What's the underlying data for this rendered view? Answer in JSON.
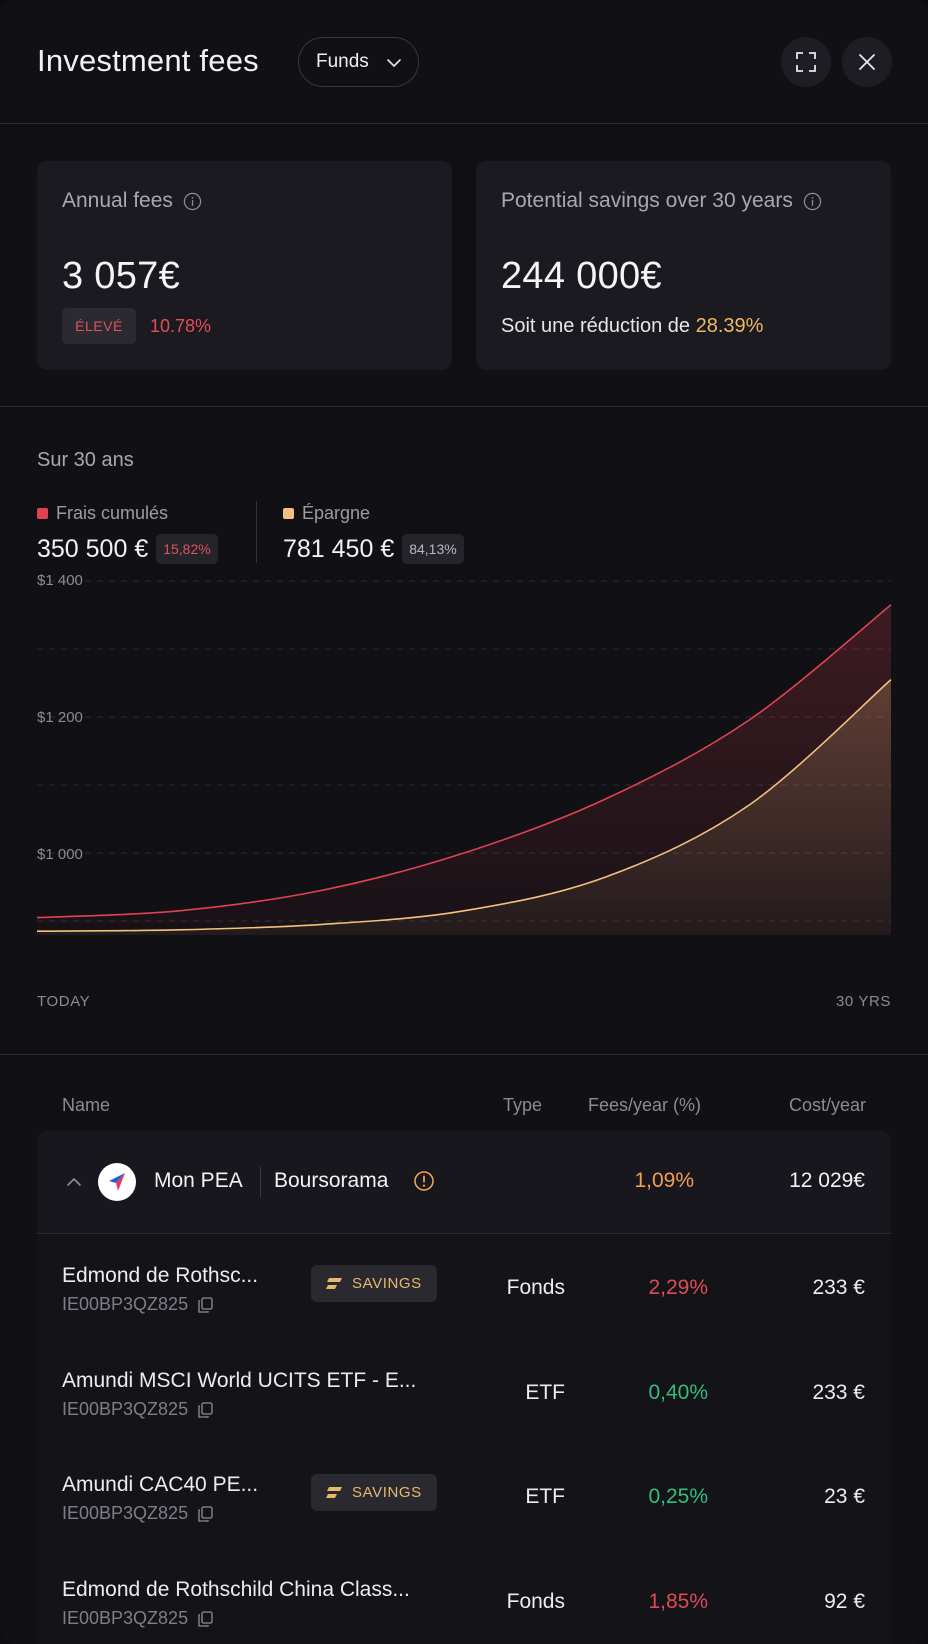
{
  "header": {
    "title": "Investment fees",
    "dropdown_value": "Funds",
    "icons": [
      "expand-icon",
      "close-icon"
    ]
  },
  "cards": {
    "annual": {
      "label": "Annual fees",
      "value": "3 057€",
      "badge": "ÉLEVÉ",
      "percent": "10.78%"
    },
    "savings": {
      "label": "Potential savings over 30 years",
      "value": "244 000€",
      "sub_prefix": "Soit une réduction de ",
      "sub_percent": "28.39%"
    }
  },
  "chart": {
    "heading": "Sur 30 ans",
    "legend": [
      {
        "label": "Frais cumulés",
        "value": "350 500 €",
        "badge": "15,82%",
        "color": "#e0434f"
      },
      {
        "label": "Épargne",
        "value": "781 450 €",
        "badge": "84,13%",
        "color": "#f3c07e"
      }
    ],
    "y_ticks": [
      "$1 400",
      "$1 200",
      "$1 000"
    ],
    "x_start": "TODAY",
    "x_end": "30 YRS"
  },
  "chart_data": {
    "type": "area",
    "x": [
      0,
      5,
      10,
      15,
      20,
      25,
      30
    ],
    "series": [
      {
        "name": "Frais cumulés",
        "values": [
          905,
          915,
          945,
          1000,
          1080,
          1195,
          1365
        ]
      },
      {
        "name": "Épargne",
        "values": [
          885,
          887,
          895,
          915,
          965,
          1070,
          1255
        ]
      }
    ],
    "ylim": [
      840,
      1420
    ],
    "yticks": [
      1000,
      1200,
      1400
    ],
    "grid": true,
    "legend": "top-left"
  },
  "table": {
    "headers": {
      "name": "Name",
      "type": "Type",
      "fees": "Fees/year (%)",
      "cost": "Cost/year"
    },
    "group": {
      "name": "Mon PEA",
      "broker": "Boursorama",
      "fee": "1,09%",
      "cost": "12 029€"
    },
    "savings_label": "SAVINGS",
    "rows": [
      {
        "name": "Edmond de Rothsc...",
        "isin": "IE00BP3QZ825",
        "type": "Fonds",
        "fee": "2,29%",
        "cost": "233 €"
      },
      {
        "name": "Amundi MSCI World UCITS ETF - E...",
        "isin": "IE00BP3QZ825",
        "type": "ETF",
        "fee": "0,40%",
        "cost": "233 €"
      },
      {
        "name": "Amundi CAC40 PE...",
        "isin": "IE00BP3QZ825",
        "type": "ETF",
        "fee": "0,25%",
        "cost": "23 €"
      },
      {
        "name": "Edmond de Rothschild China Class...",
        "isin": "IE00BP3QZ825",
        "type": "Fonds",
        "fee": "1,85%",
        "cost": "92 €"
      }
    ]
  }
}
